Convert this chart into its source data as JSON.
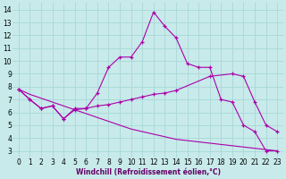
{
  "xlabel": "Windchill (Refroidissement éolien,°C)",
  "bg_color": "#c8eaea",
  "grid_color": "#a8d8d8",
  "line_color": "#aa00aa",
  "xlim": [
    -0.5,
    23.5
  ],
  "ylim": [
    2.5,
    14.5
  ],
  "xticks": [
    0,
    1,
    2,
    3,
    4,
    5,
    6,
    7,
    8,
    9,
    10,
    11,
    12,
    13,
    14,
    15,
    16,
    17,
    18,
    19,
    20,
    21,
    22,
    23
  ],
  "yticks": [
    3,
    4,
    5,
    6,
    7,
    8,
    9,
    10,
    11,
    12,
    13,
    14
  ],
  "series1_x": [
    0,
    1,
    2,
    3,
    4,
    5,
    6,
    7,
    8,
    9,
    10,
    11,
    12,
    13,
    14,
    15,
    16,
    17,
    18,
    19,
    20,
    21,
    22,
    23
  ],
  "series1_y": [
    7.8,
    7.0,
    6.3,
    6.5,
    5.5,
    6.3,
    6.3,
    7.5,
    9.5,
    10.3,
    10.3,
    11.5,
    13.8,
    12.7,
    11.8,
    9.8,
    9.5,
    9.5,
    7.0,
    6.8,
    5.0,
    4.5,
    3.0,
    3.0
  ],
  "series2_x": [
    0,
    1,
    2,
    3,
    4,
    5,
    6,
    7,
    8,
    9,
    10,
    11,
    12,
    13,
    14,
    17,
    19,
    20,
    21,
    22,
    23
  ],
  "series2_y": [
    7.8,
    7.0,
    6.3,
    6.5,
    5.5,
    6.2,
    6.3,
    6.5,
    6.6,
    6.8,
    7.0,
    7.2,
    7.4,
    7.5,
    7.7,
    8.8,
    9.0,
    8.8,
    6.8,
    5.0,
    4.5
  ],
  "series3_x": [
    0,
    1,
    2,
    3,
    4,
    5,
    6,
    7,
    8,
    9,
    10,
    11,
    12,
    13,
    14,
    15,
    16,
    17,
    18,
    19,
    20,
    21,
    22,
    23
  ],
  "series3_y": [
    7.8,
    7.4,
    7.1,
    6.8,
    6.5,
    6.2,
    5.9,
    5.6,
    5.3,
    5.0,
    4.7,
    4.5,
    4.3,
    4.1,
    3.9,
    3.8,
    3.7,
    3.6,
    3.5,
    3.4,
    3.3,
    3.2,
    3.1,
    3.0
  ],
  "xlabel_color": "#660066",
  "xlabel_fontsize": 5.5,
  "tick_fontsize": 5.5
}
